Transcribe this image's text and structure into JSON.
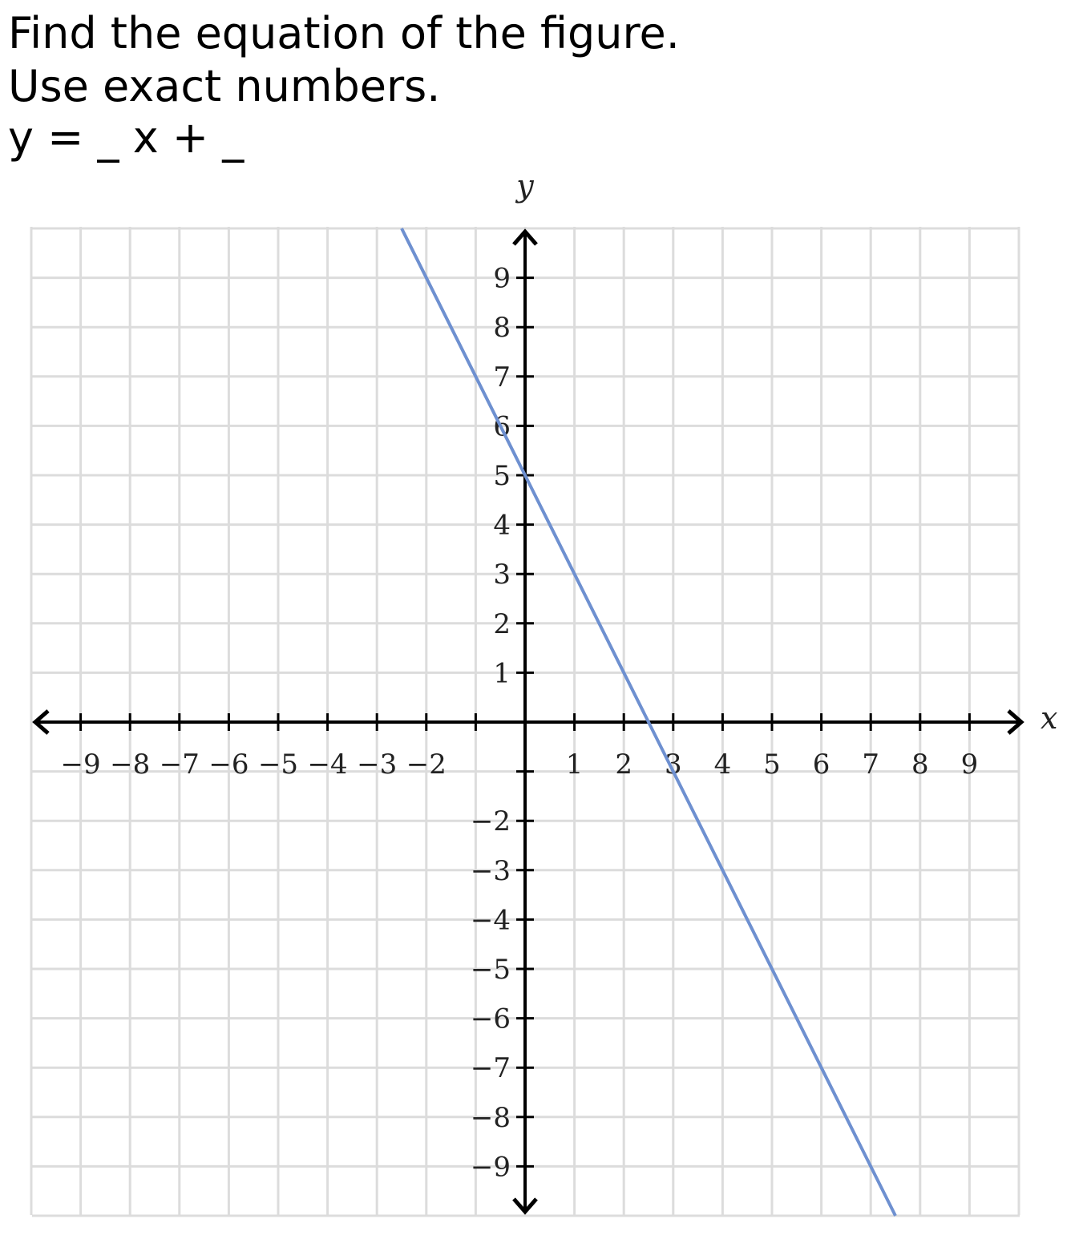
{
  "prompt": {
    "line1": "Find the equation of the figure.",
    "line2": "Use exact numbers.",
    "equation_template": "y = _ x + _"
  },
  "chart_data": {
    "type": "line",
    "xlabel": "x",
    "ylabel": "y",
    "xlim": [
      -10,
      10
    ],
    "ylim": [
      -10,
      10
    ],
    "grid": true,
    "x_tick_labels": [
      "−9",
      "−8",
      "−7",
      "−6",
      "−5",
      "−4",
      "−3",
      "−2",
      "1",
      "2",
      "3",
      "4",
      "5",
      "6",
      "7",
      "8",
      "9"
    ],
    "y_tick_labels": [
      "9",
      "8",
      "7",
      "6",
      "5",
      "4",
      "3",
      "2",
      "1",
      "−2",
      "−3",
      "−4",
      "−5",
      "−6",
      "−7",
      "−8",
      "−9"
    ],
    "series": [
      {
        "x": [
          -2.5,
          0,
          2.5,
          7.5
        ],
        "y": [
          10,
          5,
          0,
          -10
        ],
        "color": "#6e90d0"
      }
    ]
  }
}
